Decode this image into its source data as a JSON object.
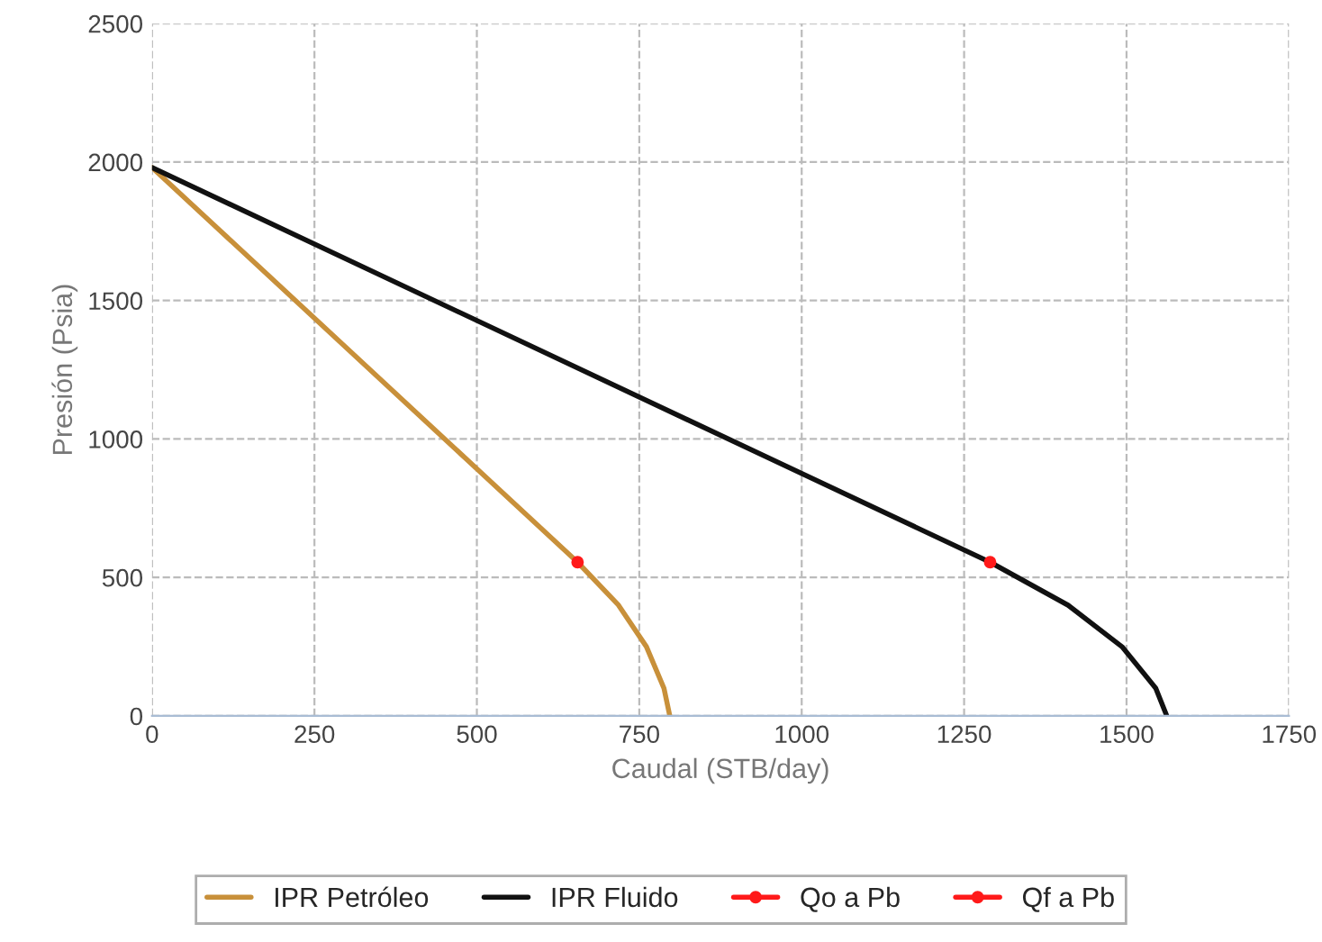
{
  "chart_data": {
    "type": "line",
    "xlabel": "Caudal (STB/day)",
    "ylabel": "Presión (Psia)",
    "xlim": [
      0,
      1750
    ],
    "xticks": [
      0,
      250,
      500,
      750,
      1000,
      1250,
      1500,
      1750
    ],
    "ylim": [
      0,
      2500
    ],
    "yticks": [
      0,
      500,
      1000,
      1500,
      2000,
      2500
    ],
    "grid": true,
    "legend": "bottom",
    "series": [
      {
        "name": "IPR Petróleo",
        "color": "#c8903a",
        "x": [
          0,
          655,
          718,
          761,
          788,
          797
        ],
        "values": [
          1980,
          555,
          400,
          250,
          100,
          0
        ],
        "marker": "none"
      },
      {
        "name": "IPR Fluido",
        "color": "#111111",
        "x": [
          0,
          1290,
          1410,
          1493,
          1545,
          1562
        ],
        "values": [
          1980,
          555,
          400,
          250,
          100,
          0
        ],
        "marker": "none"
      },
      {
        "name": "Qo a Pb",
        "color": "#ff1a1a",
        "x": [
          655
        ],
        "values": [
          555
        ],
        "marker": "circle"
      },
      {
        "name": "Qf a Pb",
        "color": "#ff1a1a",
        "x": [
          1290
        ],
        "values": [
          555
        ],
        "marker": "circle"
      }
    ]
  }
}
